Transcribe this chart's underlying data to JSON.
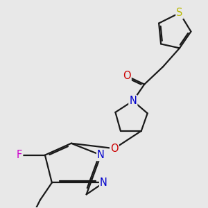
{
  "bg_color": "#e8e8e8",
  "bond_color": "#1a1a1a",
  "atom_colors": {
    "S": "#b8b800",
    "N": "#0000cc",
    "O": "#cc0000",
    "F": "#cc00cc",
    "C": "#1a1a1a"
  },
  "bond_width": 1.6,
  "dbo": 0.07,
  "font_size": 10.5
}
